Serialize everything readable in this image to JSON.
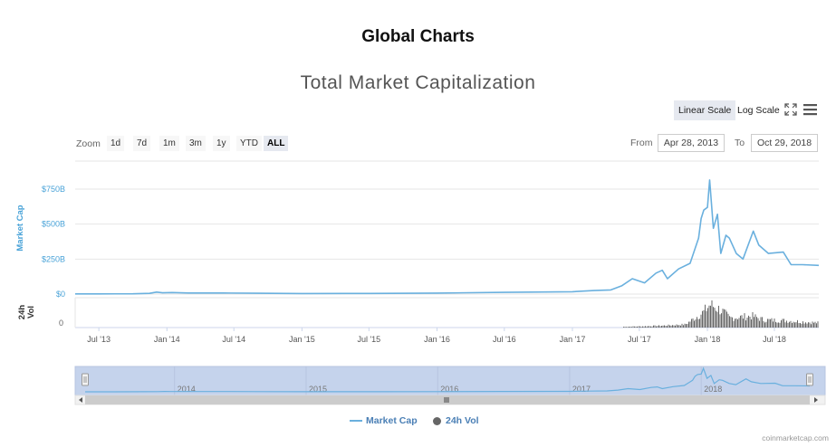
{
  "header": {
    "page_title": "Global Charts"
  },
  "toolbar": {
    "linear_label": "Linear Scale",
    "log_label": "Log Scale"
  },
  "range_selector": {
    "zoom_label": "Zoom",
    "buttons": [
      "1d",
      "7d",
      "1m",
      "3m",
      "1y",
      "YTD",
      "ALL"
    ],
    "active": "ALL",
    "from_label": "From",
    "from_value": "Apr 28, 2013",
    "to_label": "To",
    "to_value": "Oct 29, 2018"
  },
  "credits": "coinmarketcap.com",
  "colors": {
    "line": "#6ab0de",
    "volume": "#666666",
    "axis_label": "#4aa3d8",
    "navigator_mask": "#c5d3ec"
  },
  "chart_data": {
    "type": "line",
    "title": "Total Market Capitalization",
    "scale": "linear",
    "grid": true,
    "legend_position": "bottom-center",
    "x_range": [
      "2013-04-28",
      "2018-10-29"
    ],
    "x_ticks": [
      "Jul '13",
      "Jan '14",
      "Jul '14",
      "Jan '15",
      "Jul '15",
      "Jan '16",
      "Jul '16",
      "Jan '17",
      "Jul '17",
      "Jan '18",
      "Jul '18"
    ],
    "y_axis": {
      "label": "Market Cap",
      "ticks": [
        "$0",
        "$250B",
        "$500B",
        "$750B"
      ],
      "ylim": [
        0,
        850
      ]
    },
    "volume_axis": {
      "label": "24h Vol",
      "ticks": [
        "0"
      ]
    },
    "navigator_ticks": [
      "2014",
      "2015",
      "2016",
      "2017",
      "2018"
    ],
    "series": [
      {
        "name": "Market Cap",
        "unit": "billion USD",
        "points": [
          [
            "2013-04-28",
            1.5
          ],
          [
            "2013-07-01",
            1.2
          ],
          [
            "2013-10-01",
            1.8
          ],
          [
            "2013-11-15",
            5
          ],
          [
            "2013-12-04",
            14
          ],
          [
            "2013-12-20",
            9
          ],
          [
            "2014-01-15",
            11
          ],
          [
            "2014-03-01",
            8
          ],
          [
            "2014-06-01",
            8
          ],
          [
            "2014-09-01",
            6
          ],
          [
            "2015-01-01",
            4
          ],
          [
            "2015-07-01",
            4.5
          ],
          [
            "2016-01-01",
            7
          ],
          [
            "2016-07-01",
            12
          ],
          [
            "2017-01-01",
            17
          ],
          [
            "2017-03-01",
            25
          ],
          [
            "2017-04-15",
            30
          ],
          [
            "2017-05-15",
            60
          ],
          [
            "2017-06-12",
            110
          ],
          [
            "2017-07-15",
            80
          ],
          [
            "2017-08-15",
            150
          ],
          [
            "2017-09-01",
            170
          ],
          [
            "2017-09-15",
            110
          ],
          [
            "2017-10-15",
            180
          ],
          [
            "2017-11-15",
            220
          ],
          [
            "2017-12-08",
            400
          ],
          [
            "2017-12-15",
            540
          ],
          [
            "2017-12-22",
            600
          ],
          [
            "2018-01-01",
            620
          ],
          [
            "2018-01-07",
            815
          ],
          [
            "2018-01-17",
            470
          ],
          [
            "2018-01-28",
            570
          ],
          [
            "2018-02-06",
            290
          ],
          [
            "2018-02-20",
            420
          ],
          [
            "2018-03-01",
            400
          ],
          [
            "2018-03-20",
            290
          ],
          [
            "2018-04-07",
            250
          ],
          [
            "2018-05-05",
            450
          ],
          [
            "2018-05-20",
            350
          ],
          [
            "2018-06-15",
            290
          ],
          [
            "2018-07-25",
            300
          ],
          [
            "2018-08-15",
            210
          ],
          [
            "2018-09-15",
            210
          ],
          [
            "2018-10-29",
            205
          ]
        ]
      },
      {
        "name": "24h Vol",
        "unit": "billion USD",
        "points": [
          [
            "2017-05-15",
            2
          ],
          [
            "2017-07-01",
            3
          ],
          [
            "2017-09-01",
            5
          ],
          [
            "2017-11-01",
            8
          ],
          [
            "2017-12-20",
            40
          ],
          [
            "2018-01-07",
            60
          ],
          [
            "2018-02-06",
            45
          ],
          [
            "2018-03-01",
            25
          ],
          [
            "2018-05-01",
            30
          ],
          [
            "2018-06-01",
            20
          ],
          [
            "2018-08-01",
            18
          ],
          [
            "2018-10-29",
            12
          ]
        ]
      }
    ]
  }
}
